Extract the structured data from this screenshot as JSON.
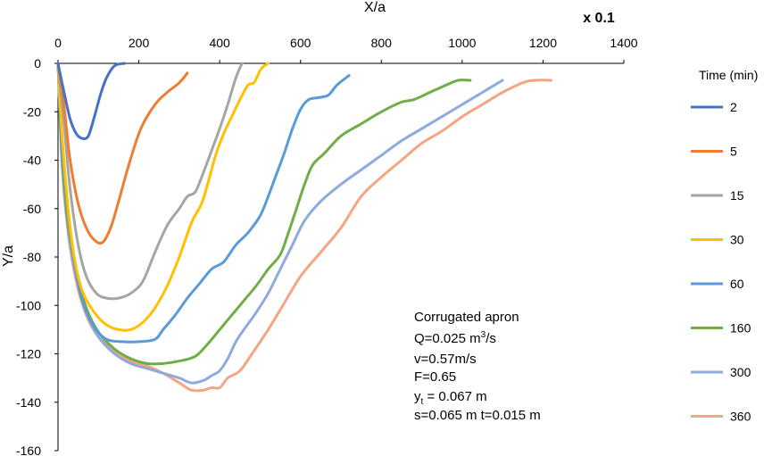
{
  "chart_data": {
    "type": "line",
    "title": "",
    "xlabel": "X/a",
    "ylabel": "Y/a",
    "x_scale_note": "x 0.1",
    "xlim": [
      0,
      1400
    ],
    "ylim": [
      -160,
      0
    ],
    "x_ticks": [
      "0",
      "200",
      "400",
      "600",
      "800",
      "1000",
      "1200",
      "1400"
    ],
    "y_ticks": [
      "0",
      "-20",
      "-40",
      "-60",
      "-80",
      "-100",
      "-120",
      "-140",
      "-160"
    ],
    "grid": false,
    "legend": {
      "title": "Time (min)",
      "position": "right"
    },
    "annotation": {
      "line1": "Corrugated apron",
      "line2_prefix": "Q=0.025 m",
      "line2_sup": "3",
      "line2_suffix": "/s",
      "line3": "v=0.57m/s",
      "line4": "F=0.65",
      "line5_prefix": "y",
      "line5_sub": "t",
      "line5_suffix": " = 0.067 m",
      "line6": "s=0.065 m t=0.015 m"
    },
    "series": [
      {
        "name": "2",
        "color": "#4472C4",
        "x": [
          0,
          15,
          30,
          45,
          60,
          75,
          90,
          105,
          120,
          140,
          165
        ],
        "y": [
          0,
          -12,
          -23,
          -29,
          -31,
          -30,
          -22,
          -13,
          -6,
          -1,
          0
        ]
      },
      {
        "name": "5",
        "color": "#ED7D31",
        "x": [
          0,
          15,
          30,
          50,
          70,
          90,
          110,
          130,
          150,
          175,
          205,
          240,
          270,
          300,
          320
        ],
        "y": [
          0,
          -18,
          -40,
          -58,
          -68,
          -73,
          -74,
          -68,
          -57,
          -42,
          -27,
          -17,
          -12,
          -8,
          -4
        ]
      },
      {
        "name": "15",
        "color": "#A5A5A5",
        "x": [
          0,
          15,
          30,
          50,
          70,
          95,
          120,
          150,
          180,
          210,
          240,
          270,
          300,
          320,
          340,
          360,
          380,
          400,
          420,
          440,
          455
        ],
        "y": [
          0,
          -25,
          -52,
          -75,
          -88,
          -95,
          -97,
          -97,
          -95,
          -90,
          -78,
          -67,
          -60,
          -55,
          -53,
          -45,
          -36,
          -27,
          -17,
          -6,
          0
        ]
      },
      {
        "name": "30",
        "color": "#FFC000",
        "x": [
          0,
          10,
          25,
          40,
          60,
          90,
          120,
          150,
          180,
          210,
          240,
          270,
          300,
          330,
          355,
          370,
          390,
          410,
          430,
          450,
          470,
          485,
          500,
          510,
          520
        ],
        "y": [
          0,
          -30,
          -60,
          -80,
          -94,
          -103,
          -108,
          -110,
          -110,
          -107,
          -101,
          -92,
          -80,
          -66,
          -58,
          -50,
          -38,
          -29,
          -22,
          -15,
          -9,
          -8,
          -3,
          -1,
          0
        ]
      },
      {
        "name": "60",
        "color": "#5B9BD5",
        "x": [
          0,
          10,
          25,
          40,
          60,
          90,
          120,
          160,
          200,
          240,
          260,
          290,
          320,
          350,
          380,
          410,
          440,
          470,
          500,
          520,
          540,
          560,
          580,
          600,
          620,
          650,
          670,
          690,
          720
        ],
        "y": [
          0,
          -35,
          -62,
          -82,
          -98,
          -109,
          -114,
          -115,
          -115,
          -114,
          -110,
          -104,
          -97,
          -91,
          -85,
          -82,
          -75,
          -70,
          -63,
          -55,
          -46,
          -37,
          -27,
          -19,
          -15,
          -14,
          -13,
          -9,
          -5
        ]
      },
      {
        "name": "160",
        "color": "#70AD47",
        "x": [
          0,
          10,
          25,
          45,
          70,
          100,
          140,
          180,
          220,
          260,
          300,
          340,
          370,
          400,
          430,
          460,
          490,
          520,
          550,
          570,
          590,
          610,
          630,
          660,
          700,
          750,
          800,
          850,
          880,
          920,
          960,
          990,
          1020
        ],
        "y": [
          0,
          -38,
          -66,
          -86,
          -101,
          -111,
          -118,
          -122,
          -124,
          -124,
          -123,
          -121,
          -116,
          -110,
          -104,
          -98,
          -92,
          -85,
          -79,
          -70,
          -60,
          -50,
          -42,
          -37,
          -30,
          -25,
          -20,
          -16,
          -15,
          -12,
          -9,
          -7,
          -7
        ]
      },
      {
        "name": "300",
        "color": "#8FAADC",
        "x": [
          0,
          10,
          25,
          45,
          70,
          100,
          140,
          180,
          220,
          260,
          300,
          330,
          360,
          380,
          400,
          420,
          440,
          460,
          490,
          520,
          550,
          580,
          610,
          650,
          700,
          750,
          800,
          850,
          900,
          950,
          1000,
          1040,
          1070,
          1100
        ],
        "y": [
          0,
          -40,
          -68,
          -88,
          -103,
          -113,
          -120,
          -124,
          -126,
          -128,
          -130,
          -132,
          -131,
          -129,
          -127,
          -122,
          -115,
          -110,
          -103,
          -95,
          -85,
          -75,
          -65,
          -57,
          -50,
          -44,
          -38,
          -32,
          -27,
          -22,
          -17,
          -13,
          -10,
          -7
        ]
      },
      {
        "name": "360",
        "color": "#F4A582",
        "x": [
          0,
          10,
          25,
          45,
          70,
          100,
          140,
          180,
          220,
          260,
          300,
          330,
          360,
          380,
          400,
          420,
          450,
          480,
          520,
          560,
          600,
          650,
          700,
          750,
          800,
          850,
          900,
          950,
          1000,
          1050,
          1100,
          1150,
          1180,
          1220
        ],
        "y": [
          0,
          -42,
          -70,
          -90,
          -104,
          -113,
          -119,
          -123,
          -125,
          -128,
          -132,
          -135,
          -135,
          -134,
          -134,
          -130,
          -127,
          -120,
          -110,
          -99,
          -88,
          -78,
          -68,
          -55,
          -47,
          -40,
          -33,
          -28,
          -22,
          -17,
          -12,
          -8,
          -7,
          -7
        ]
      }
    ]
  }
}
